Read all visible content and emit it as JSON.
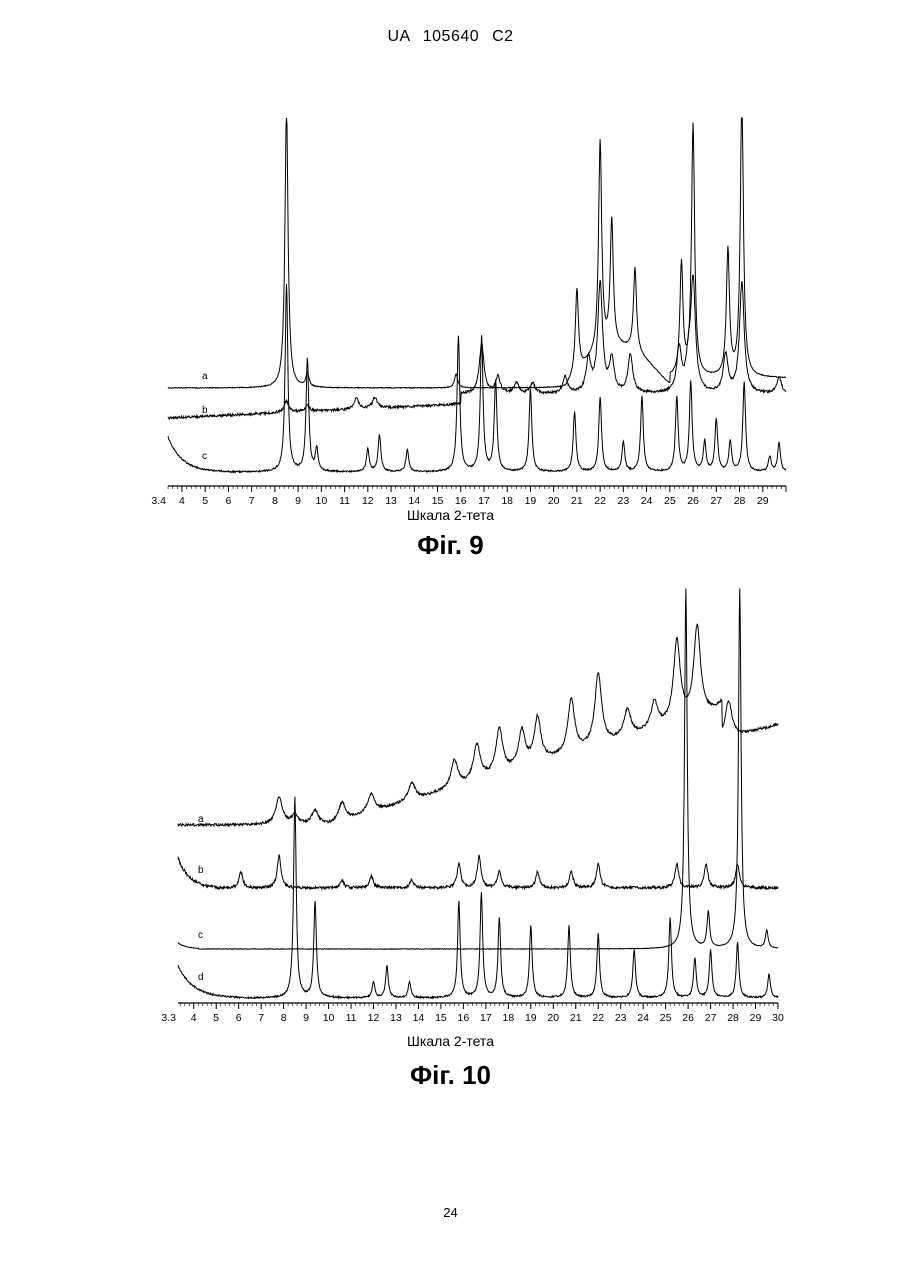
{
  "document": {
    "header": "UA 105640 C2",
    "page_number": "24"
  },
  "chart_data": [
    {
      "type": "line",
      "figure_caption": "Фіг. 9",
      "xlabel": "Шкала 2-тета",
      "tick_labels": [
        "3.4",
        "4",
        "5",
        "6",
        "7",
        "8",
        "9",
        "10",
        "11",
        "12",
        "13",
        "14",
        "15",
        "16",
        "17",
        "18",
        "19",
        "20",
        "21",
        "22",
        "23",
        "24",
        "25",
        "26",
        "27",
        "28",
        "29"
      ],
      "xlim": [
        3.4,
        30
      ],
      "grid": false,
      "series": [
        {
          "name": "a",
          "peaks": [
            [
              8.5,
              2.0
            ],
            [
              9.4,
              0.1
            ],
            [
              15.8,
              0.1
            ],
            [
              21.0,
              0.6
            ],
            [
              22.0,
              1.5
            ],
            [
              22.5,
              0.9
            ],
            [
              23.5,
              0.6
            ],
            [
              25.5,
              0.8
            ],
            [
              26.0,
              1.8
            ],
            [
              27.5,
              0.9
            ],
            [
              28.1,
              2.0
            ]
          ]
        },
        {
          "name": "b",
          "peaks": [
            [
              8.5,
              0.2
            ],
            [
              9.4,
              0.1
            ],
            [
              11.5,
              0.2
            ],
            [
              12.3,
              0.2
            ],
            [
              16.9,
              0.9
            ],
            [
              17.6,
              0.3
            ],
            [
              18.4,
              0.2
            ],
            [
              19.1,
              0.2
            ],
            [
              20.5,
              0.3
            ],
            [
              21.5,
              0.6
            ],
            [
              22.0,
              2.0
            ],
            [
              22.5,
              0.6
            ],
            [
              23.3,
              0.7
            ],
            [
              25.4,
              0.8
            ],
            [
              25.8,
              0.5
            ],
            [
              26.0,
              2.0
            ],
            [
              27.4,
              0.7
            ],
            [
              28.1,
              2.0
            ],
            [
              29.7,
              0.3
            ]
          ]
        },
        {
          "name": "c",
          "peaks": [
            [
              8.5,
              2.5
            ],
            [
              9.4,
              1.5
            ],
            [
              9.8,
              0.3
            ],
            [
              12.0,
              0.3
            ],
            [
              12.5,
              0.5
            ],
            [
              13.7,
              0.3
            ],
            [
              15.9,
              1.8
            ],
            [
              16.9,
              1.8
            ],
            [
              17.5,
              1.2
            ],
            [
              19.0,
              1.1
            ],
            [
              20.9,
              0.8
            ],
            [
              22.0,
              1.0
            ],
            [
              23.0,
              0.4
            ],
            [
              23.8,
              1.0
            ],
            [
              25.3,
              1.0
            ],
            [
              25.9,
              1.2
            ],
            [
              26.5,
              0.4
            ],
            [
              27.0,
              0.7
            ],
            [
              27.6,
              0.4
            ],
            [
              28.2,
              1.2
            ],
            [
              29.3,
              0.2
            ],
            [
              29.7,
              0.4
            ]
          ]
        }
      ]
    },
    {
      "type": "line",
      "figure_caption": "Фіг. 10",
      "xlabel": "Шкала 2-тета",
      "tick_labels": [
        "3.3",
        "4",
        "5",
        "6",
        "7",
        "8",
        "9",
        "10",
        "11",
        "12",
        "13",
        "14",
        "15",
        "16",
        "17",
        "18",
        "19",
        "20",
        "21",
        "22",
        "23",
        "24",
        "25",
        "26",
        "27",
        "28",
        "29",
        "30"
      ],
      "xlim": [
        3.3,
        30
      ],
      "grid": false,
      "series": [
        {
          "name": "a",
          "peaks": [
            [
              7.8,
              0.3
            ],
            [
              8.5,
              0.1
            ],
            [
              9.4,
              0.15
            ],
            [
              10.6,
              0.2
            ],
            [
              11.9,
              0.2
            ],
            [
              13.7,
              0.2
            ],
            [
              15.6,
              0.3
            ],
            [
              16.6,
              0.4
            ],
            [
              17.6,
              0.5
            ],
            [
              18.6,
              0.4
            ],
            [
              19.3,
              0.5
            ],
            [
              20.8,
              0.6
            ],
            [
              22.0,
              0.8
            ],
            [
              23.3,
              0.3
            ],
            [
              24.5,
              0.3
            ],
            [
              25.5,
              0.9
            ],
            [
              26.4,
              1.0
            ],
            [
              27.8,
              0.4
            ]
          ]
        },
        {
          "name": "b",
          "peaks": [
            [
              6.1,
              0.2
            ],
            [
              7.8,
              0.4
            ],
            [
              10.6,
              0.1
            ],
            [
              11.9,
              0.15
            ],
            [
              13.7,
              0.1
            ],
            [
              15.8,
              0.3
            ],
            [
              16.7,
              0.4
            ],
            [
              17.6,
              0.2
            ],
            [
              19.3,
              0.2
            ],
            [
              20.8,
              0.2
            ],
            [
              22.0,
              0.3
            ],
            [
              25.5,
              0.3
            ],
            [
              26.8,
              0.3
            ],
            [
              28.2,
              0.3
            ]
          ]
        },
        {
          "name": "c",
          "peaks": [
            [
              25.9,
              2.0
            ],
            [
              26.9,
              0.2
            ],
            [
              28.3,
              2.0
            ],
            [
              29.5,
              0.1
            ]
          ]
        },
        {
          "name": "d",
          "peaks": [
            [
              8.5,
              2.5
            ],
            [
              9.4,
              1.2
            ],
            [
              12.0,
              0.2
            ],
            [
              12.6,
              0.4
            ],
            [
              13.6,
              0.2
            ],
            [
              15.8,
              1.2
            ],
            [
              16.8,
              1.3
            ],
            [
              17.6,
              1.0
            ],
            [
              19.0,
              0.9
            ],
            [
              20.7,
              0.9
            ],
            [
              22.0,
              0.8
            ],
            [
              23.6,
              0.6
            ],
            [
              25.2,
              1.0
            ],
            [
              26.3,
              0.5
            ],
            [
              27.0,
              0.6
            ],
            [
              28.2,
              0.7
            ],
            [
              29.6,
              0.3
            ]
          ]
        }
      ]
    }
  ]
}
